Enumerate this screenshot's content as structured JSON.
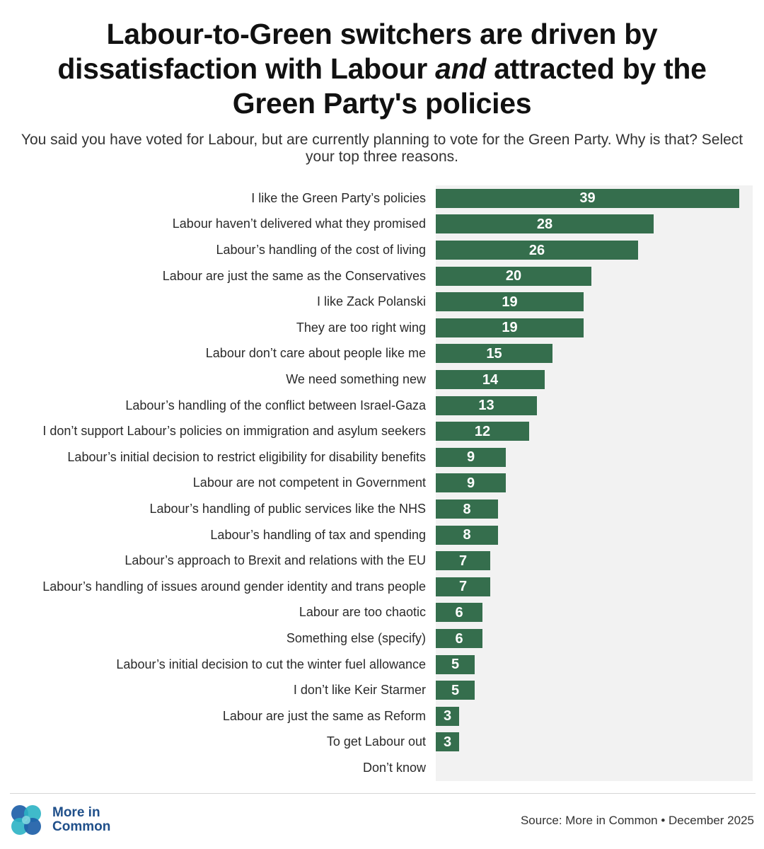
{
  "header": {
    "title_line1": "Labour-to-Green switchers are driven by",
    "title_line2_pre": "dissatisfaction with Labour ",
    "title_line2_em": "and",
    "title_line2_post": " attracted by the",
    "title_line3": "Green Party's policies",
    "subtitle": "You said you have voted for Labour, but are currently planning to vote for the Green Party. Why is that? Select your top three reasons."
  },
  "chart_data": {
    "type": "bar",
    "orientation": "horizontal",
    "xlim": [
      0,
      40
    ],
    "categories": [
      "I like the Green Party’s policies",
      "Labour haven’t delivered what they promised",
      "Labour’s handling of the cost of living",
      "Labour are just the same as the Conservatives",
      "I like Zack Polanski",
      "They are too right wing",
      "Labour don’t care about people like me",
      "We need something new",
      "Labour’s handling of the conflict between Israel-Gaza",
      "I don’t support Labour’s policies on immigration and asylum seekers",
      "Labour’s initial decision to restrict eligibility for disability benefits",
      "Labour are not competent in Government",
      "Labour’s handling of public services like the NHS",
      "Labour’s handling of tax and spending",
      "Labour’s approach to Brexit and relations with the EU",
      "Labour’s handling of issues around gender identity and trans people",
      "Labour are too chaotic",
      "Something else (specify)",
      "Labour’s initial decision to cut the winter fuel allowance",
      "I don’t like Keir Starmer",
      "Labour are just the same as Reform",
      "To get Labour out",
      "Don’t know"
    ],
    "values": [
      39,
      28,
      26,
      20,
      19,
      19,
      15,
      14,
      13,
      12,
      9,
      9,
      8,
      8,
      7,
      7,
      6,
      6,
      5,
      5,
      3,
      3,
      0
    ],
    "data_labels": [
      "39",
      "28",
      "26",
      "20",
      "19",
      "19",
      "15",
      "14",
      "13",
      "12",
      "9",
      "9",
      "8",
      "8",
      "7",
      "7",
      "6",
      "6",
      "5",
      "5",
      "3",
      "3",
      ""
    ],
    "bar_color": "#356e4d",
    "background_color": "#f2f2f2"
  },
  "footer": {
    "logo_line1": "More in",
    "logo_line2": "Common",
    "source": "Source: More in Common • December 2025"
  }
}
